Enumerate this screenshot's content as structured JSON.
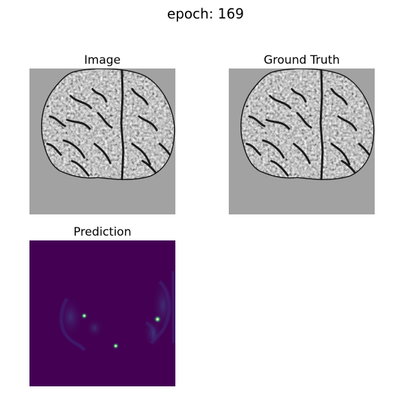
{
  "figure": {
    "title": "epoch: 169"
  },
  "panels": [
    {
      "title": "Image",
      "colormap": "gray",
      "background": "#a2a2a2"
    },
    {
      "title": "Ground Truth",
      "colormap": "gray",
      "background": "#a2a2a2"
    },
    {
      "title": "Prediction",
      "colormap": "viridis",
      "background": "#440154"
    }
  ]
}
